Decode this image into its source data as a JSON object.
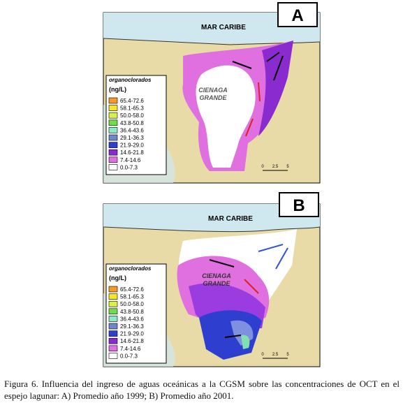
{
  "panels": [
    {
      "label": "A",
      "sea_label": "MAR CARIBE",
      "lagoon_label": [
        "CIENAGA",
        "GRANDE"
      ],
      "legend": {
        "title": "organoclorados",
        "unit": "(ng/L)",
        "entries": [
          {
            "label": "65.4-72.6",
            "color": "#f39a2b"
          },
          {
            "label": "58.1-65.3",
            "color": "#f5e62a"
          },
          {
            "label": "50.0-58.0",
            "color": "#d8f04a"
          },
          {
            "label": "43.8-50.8",
            "color": "#6fdc4a"
          },
          {
            "label": "36.4-43.6",
            "color": "#8ee8c8"
          },
          {
            "label": "29.1-36.3",
            "color": "#6f86c8"
          },
          {
            "label": "21.9-29.0",
            "color": "#2e3fd0"
          },
          {
            "label": "14.6-21.8",
            "color": "#8a2bd0"
          },
          {
            "label": "7.4-14.6",
            "color": "#e070e0"
          },
          {
            "label": "0.0-7.3",
            "color": "#ffffff"
          }
        ]
      },
      "scale": [
        "0",
        "2.5",
        "5"
      ]
    },
    {
      "label": "B",
      "sea_label": "MAR CARIBE",
      "lagoon_label": [
        "CIENAGA",
        "GRANDE"
      ],
      "legend": {
        "title": "organoclorados",
        "unit": "(ng/L)",
        "entries": [
          {
            "label": "65.4-72.6",
            "color": "#f39a2b"
          },
          {
            "label": "58.1-65.3",
            "color": "#f5e62a"
          },
          {
            "label": "50.0-58.0",
            "color": "#d8f04a"
          },
          {
            "label": "43.8-50.8",
            "color": "#6fdc4a"
          },
          {
            "label": "36.4-43.6",
            "color": "#8ee8c8"
          },
          {
            "label": "29.1-36.3",
            "color": "#6f86c8"
          },
          {
            "label": "21.9-29.0",
            "color": "#2e3fd0"
          },
          {
            "label": "14.6-21.8",
            "color": "#8a2bd0"
          },
          {
            "label": "7.4-14.6",
            "color": "#e070e0"
          },
          {
            "label": "0.0-7.3",
            "color": "#ffffff"
          }
        ]
      },
      "scale": [
        "0",
        "2.5",
        "5"
      ]
    }
  ],
  "caption": "Figura 6. Influencia del ingreso de aguas oceánicas a la CGSM sobre las concentraciones de OCT en el espejo lagunar: A) Promedio año 1999; B) Promedio año 2001."
}
